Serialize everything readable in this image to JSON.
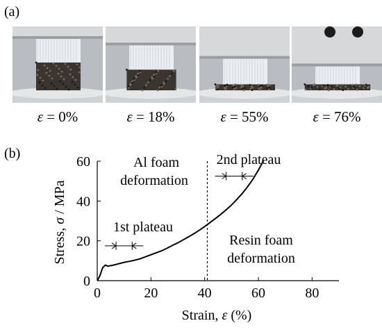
{
  "panel_a": {
    "label": "(a)",
    "frames": [
      {
        "symbol": "ε",
        "text": " = 0%",
        "crush_level": 0.0
      },
      {
        "symbol": "ε",
        "text": " = 18%",
        "crush_level": 0.18
      },
      {
        "symbol": "ε",
        "text": " = 55%",
        "crush_level": 0.55
      },
      {
        "symbol": "ε",
        "text": " = 76%",
        "crush_level": 0.76
      }
    ]
  },
  "panel_b": {
    "label": "(b)",
    "annotations": {
      "al_foam_line1": "Al foam",
      "al_foam_line2": "deformation",
      "resin_line1": "Resin foam",
      "resin_line2": "deformation",
      "first_plateau": "1st plateau",
      "second_plateau": "2nd plateau"
    }
  },
  "chart_data": {
    "type": "line",
    "title": "",
    "xlabel": "Strain, ε (%)",
    "ylabel": "Stress, σ / MPa",
    "xlim": [
      0,
      90
    ],
    "ylim": [
      0,
      60
    ],
    "xticks": [
      0,
      20,
      40,
      60,
      80
    ],
    "yticks": [
      0,
      20,
      40,
      60
    ],
    "grid": false,
    "series": [
      {
        "x": [
          0,
          1,
          2,
          3,
          4,
          6,
          8,
          10,
          12,
          14,
          16,
          18,
          20,
          22,
          24,
          26,
          28,
          30,
          32,
          34,
          36,
          38,
          40,
          42,
          44,
          46,
          48,
          50,
          52,
          54,
          56,
          58,
          60,
          62
        ],
        "values": [
          0,
          2.5,
          6.5,
          7.8,
          7.3,
          7.8,
          8.5,
          9.2,
          9.7,
          10.3,
          11.0,
          12.0,
          13.0,
          14.0,
          15.0,
          16.3,
          17.7,
          19.0,
          20.5,
          22.0,
          23.6,
          25.3,
          27.2,
          29.2,
          31.2,
          33.3,
          35.6,
          38.0,
          40.8,
          43.8,
          47.2,
          51.0,
          55.5,
          60.5
        ]
      }
    ],
    "divider_x": 41,
    "plateau_markers": [
      {
        "label": "1st plateau",
        "x_center": 10,
        "y": 17.5,
        "x_half": 3
      },
      {
        "label": "2nd plateau",
        "x_center": 51,
        "y": 52.5,
        "x_half": 3
      }
    ]
  }
}
